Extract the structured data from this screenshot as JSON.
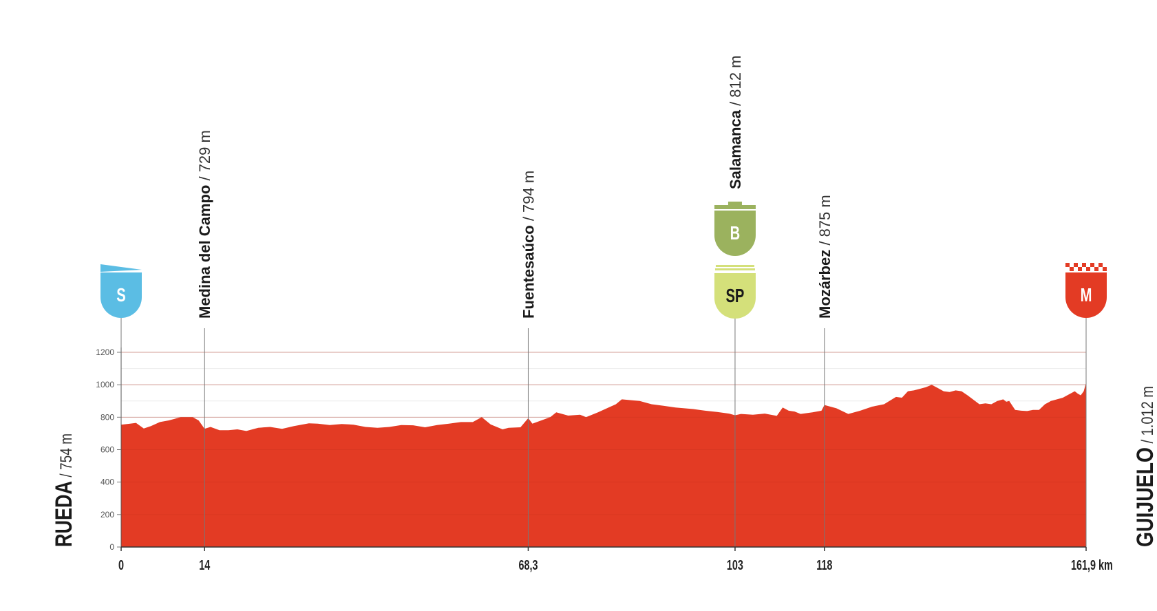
{
  "chart_data": {
    "type": "area",
    "title": "",
    "xlabel": "",
    "ylabel": "",
    "x_unit": "km",
    "xlim": [
      0,
      161.9
    ],
    "ylim": [
      0,
      1200
    ],
    "y_ticks": [
      "0",
      "200",
      "400",
      "600",
      "800",
      "1000",
      "1200"
    ],
    "y_tick_values": [
      0,
      200,
      400,
      600,
      800,
      1000,
      1200
    ],
    "grid": true,
    "fill_color": "#e33b24",
    "start": {
      "name": "RUEDA",
      "altitude": "754 m"
    },
    "finish": {
      "name": "GUIJUELO",
      "altitude": "1.012 m"
    },
    "x_ticks": [
      {
        "km": 0,
        "label": "0"
      },
      {
        "km": 14,
        "label": "14"
      },
      {
        "km": 68.3,
        "label": "68,3"
      },
      {
        "km": 103,
        "label": "103"
      },
      {
        "km": 118,
        "label": "118"
      },
      {
        "km": 161.9,
        "label": "161,9 km"
      }
    ],
    "points_of_interest": [
      {
        "km": 14,
        "name": "Medina del Campo",
        "altitude": "729 m",
        "elevation": 729
      },
      {
        "km": 68.3,
        "name": "Fuentesaúco",
        "altitude": "794 m",
        "elevation": 794
      },
      {
        "km": 103,
        "name": "Salamanca",
        "altitude": "812 m",
        "elevation": 812
      },
      {
        "km": 118,
        "name": "Mozárbez",
        "altitude": "875 m",
        "elevation": 875
      }
    ],
    "markers": [
      {
        "km": 0,
        "label": "S",
        "kind": "start",
        "color": "#5bbde4"
      },
      {
        "km": 103,
        "label": "B",
        "kind": "bonus",
        "color": "#9bb25e"
      },
      {
        "km": 103,
        "label": "SP",
        "kind": "sprint",
        "color": "#d4e07a"
      },
      {
        "km": 161.9,
        "label": "M",
        "kind": "finish",
        "color": "#e33b24"
      }
    ],
    "profile": [
      [
        0,
        754
      ],
      [
        1.5,
        760
      ],
      [
        2.5,
        765
      ],
      [
        3.8,
        730
      ],
      [
        5,
        745
      ],
      [
        6.5,
        770
      ],
      [
        8,
        780
      ],
      [
        10,
        800
      ],
      [
        12,
        800
      ],
      [
        13,
        780
      ],
      [
        14,
        729
      ],
      [
        15,
        740
      ],
      [
        16.5,
        720
      ],
      [
        18,
        720
      ],
      [
        19.5,
        725
      ],
      [
        21,
        715
      ],
      [
        23,
        735
      ],
      [
        25,
        740
      ],
      [
        27,
        728
      ],
      [
        29,
        745
      ],
      [
        31.5,
        762
      ],
      [
        33,
        760
      ],
      [
        35,
        752
      ],
      [
        37,
        758
      ],
      [
        39,
        754
      ],
      [
        41,
        740
      ],
      [
        43,
        735
      ],
      [
        45,
        740
      ],
      [
        47,
        752
      ],
      [
        49,
        750
      ],
      [
        51,
        738
      ],
      [
        53,
        752
      ],
      [
        55,
        760
      ],
      [
        57,
        770
      ],
      [
        59,
        770
      ],
      [
        60.5,
        800
      ],
      [
        62,
        755
      ],
      [
        64,
        725
      ],
      [
        65,
        735
      ],
      [
        67,
        738
      ],
      [
        68.3,
        794
      ],
      [
        69,
        760
      ],
      [
        72,
        800
      ],
      [
        73,
        830
      ],
      [
        75,
        810
      ],
      [
        77,
        815
      ],
      [
        78,
        800
      ],
      [
        80,
        830
      ],
      [
        83,
        880
      ],
      [
        84,
        910
      ],
      [
        87,
        900
      ],
      [
        89,
        880
      ],
      [
        91,
        870
      ],
      [
        93,
        860
      ],
      [
        96,
        850
      ],
      [
        98,
        840
      ],
      [
        100,
        832
      ],
      [
        102,
        822
      ],
      [
        103,
        812
      ],
      [
        104,
        820
      ],
      [
        106,
        815
      ],
      [
        108,
        822
      ],
      [
        110,
        808
      ],
      [
        111,
        860
      ],
      [
        112,
        840
      ],
      [
        113,
        835
      ],
      [
        114,
        820
      ],
      [
        116,
        830
      ],
      [
        117.5,
        840
      ],
      [
        118,
        875
      ],
      [
        120,
        855
      ],
      [
        122,
        820
      ],
      [
        124,
        840
      ],
      [
        126,
        865
      ],
      [
        128,
        880
      ],
      [
        130,
        925
      ],
      [
        131,
        920
      ],
      [
        132,
        960
      ],
      [
        133,
        965
      ],
      [
        134,
        975
      ],
      [
        135,
        985
      ],
      [
        136,
        1000
      ],
      [
        137,
        980
      ],
      [
        138,
        960
      ],
      [
        139,
        955
      ],
      [
        140,
        965
      ],
      [
        141,
        960
      ],
      [
        142,
        935
      ],
      [
        144,
        880
      ],
      [
        145,
        885
      ],
      [
        146,
        880
      ],
      [
        147,
        900
      ],
      [
        148,
        910
      ],
      [
        148.5,
        895
      ],
      [
        149,
        900
      ],
      [
        150,
        845
      ],
      [
        151,
        840
      ],
      [
        152,
        838
      ],
      [
        153,
        845
      ],
      [
        154,
        845
      ],
      [
        155,
        880
      ],
      [
        156,
        900
      ],
      [
        157,
        910
      ],
      [
        158,
        920
      ],
      [
        159,
        940
      ],
      [
        160,
        960
      ],
      [
        160.5,
        945
      ],
      [
        161,
        935
      ],
      [
        161.5,
        960
      ],
      [
        161.9,
        1012
      ]
    ]
  }
}
